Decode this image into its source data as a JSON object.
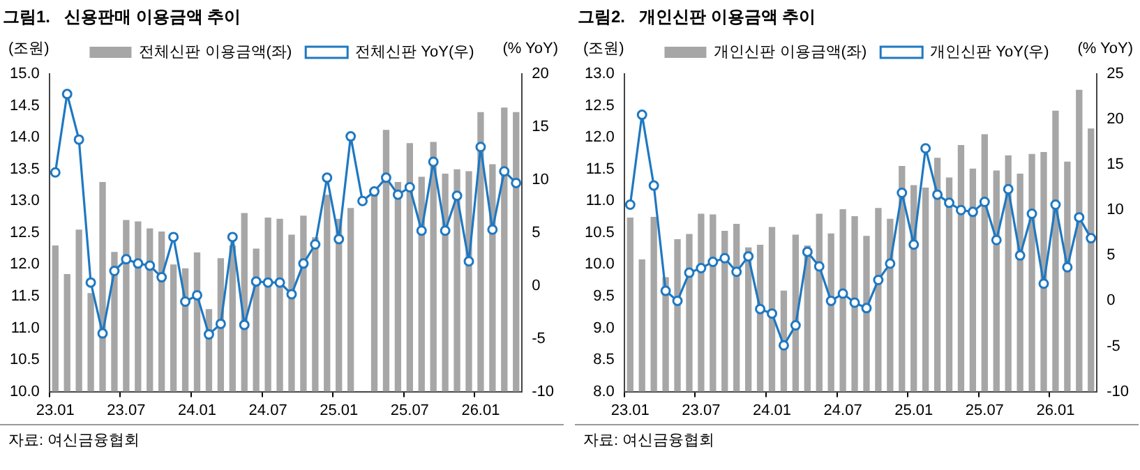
{
  "chart_data": [
    {
      "type": "bar",
      "title": "그림1.   신용판매 이용금액 추이",
      "ylabel": "(조원)",
      "y2label": "(% YoY)",
      "categories": [
        "23.01",
        null,
        null,
        null,
        null,
        null,
        "23.07",
        null,
        null,
        null,
        null,
        null,
        "24.01",
        null,
        null,
        null,
        null,
        null,
        "24.07",
        null,
        null,
        null,
        null,
        null,
        "25.01",
        null,
        null,
        null,
        null,
        null,
        "25.07",
        null,
        null,
        null,
        null,
        null,
        "26.01",
        null,
        null,
        null
      ],
      "series": [
        {
          "name": "전체신판 이용금액(좌)",
          "color": "#a6a6a6",
          "values": [
            12.3,
            11.85,
            12.55,
            11.55,
            13.3,
            12.2,
            12.7,
            12.68,
            12.57,
            12.52,
            12.0,
            11.94,
            12.19,
            11.3,
            12.1,
            12.3,
            12.81,
            12.25,
            12.74,
            12.72,
            12.47,
            12.77,
            12.43,
            13.1,
            12.72,
            12.89,
            null,
            13.1,
            14.12,
            13.3,
            13.91,
            13.38,
            13.93,
            13.43,
            13.5,
            13.47,
            14.4,
            13.58,
            14.47,
            14.4
          ]
        },
        {
          "name": "전체신판 YoY(우)",
          "type": "line",
          "axis": "y2",
          "color": "#1f78c1",
          "marker": "circle",
          "values": [
            10.7,
            18.1,
            13.8,
            0.3,
            -4.5,
            1.4,
            2.5,
            2.1,
            1.9,
            0.8,
            4.6,
            -1.5,
            -0.9,
            -4.6,
            -3.6,
            4.6,
            -3.7,
            0.4,
            0.3,
            0.3,
            -0.8,
            2.1,
            3.9,
            10.2,
            4.4,
            14.1,
            8.0,
            8.9,
            10.2,
            8.6,
            9.3,
            5.2,
            11.7,
            5.2,
            8.5,
            2.3,
            13.1,
            5.3,
            10.8,
            9.7
          ]
        }
      ],
      "ylim": [
        10,
        15
      ],
      "yticks": [
        {
          "value": 10,
          "label": "10.0"
        },
        {
          "value": 10.5,
          "label": "10.5"
        },
        {
          "value": 11,
          "label": "11.0"
        },
        {
          "value": 11.5,
          "label": "11.5"
        },
        {
          "value": 12,
          "label": "12.0"
        },
        {
          "value": 12.5,
          "label": "12.5"
        },
        {
          "value": 13,
          "label": "13.0"
        },
        {
          "value": 13.5,
          "label": "13.5"
        },
        {
          "value": 14,
          "label": "14.0"
        },
        {
          "value": 14.5,
          "label": "14.5"
        },
        {
          "value": 15,
          "label": "15.0"
        }
      ],
      "y2lim": [
        -10,
        20
      ],
      "y2ticks": [
        -10,
        -5,
        0,
        5,
        10,
        15,
        20
      ],
      "grid": false,
      "legend": "top",
      "annotations": [
        "자료: 여신금융협회"
      ]
    },
    {
      "type": "bar",
      "title": "그림2.   개인신판 이용금액 추이",
      "ylabel": "(조원)",
      "y2label": "(% YoY)",
      "categories": [
        "23.01",
        null,
        null,
        null,
        null,
        null,
        "23.07",
        null,
        null,
        null,
        null,
        null,
        "24.01",
        null,
        null,
        null,
        null,
        null,
        "24.07",
        null,
        null,
        null,
        null,
        null,
        "25.01",
        null,
        null,
        null,
        null,
        null,
        "25.07",
        null,
        null,
        null,
        null,
        null,
        "26.01",
        null,
        null,
        null
      ],
      "series": [
        {
          "name": "개인신판 이용금액(좌)",
          "color": "#a6a6a6",
          "values": [
            10.74,
            10.08,
            10.75,
            9.8,
            10.4,
            10.48,
            10.8,
            10.79,
            10.53,
            10.64,
            10.27,
            10.31,
            10.59,
            9.59,
            10.47,
            10.3,
            10.8,
            10.49,
            10.87,
            10.76,
            10.45,
            10.89,
            10.72,
            11.55,
            11.25,
            11.21,
            11.68,
            11.37,
            11.88,
            11.51,
            12.05,
            11.48,
            11.72,
            11.43,
            11.74,
            11.77,
            12.42,
            11.62,
            12.75,
            12.14
          ]
        },
        {
          "name": "개인신판 YoY(우)",
          "type": "line",
          "axis": "y2",
          "color": "#1f78c1",
          "marker": "circle",
          "values": [
            10.6,
            20.5,
            12.7,
            1.1,
            0,
            3.1,
            3.6,
            4.3,
            4.7,
            3.2,
            4.9,
            -0.9,
            -1.4,
            -4.9,
            -2.7,
            5.4,
            3.8,
            0,
            0.8,
            -0.2,
            -0.8,
            2.3,
            4.1,
            11.9,
            6.2,
            16.8,
            11.7,
            10.8,
            10.0,
            9.8,
            10.9,
            6.7,
            12.3,
            5.0,
            9.6,
            1.9,
            10.6,
            3.7,
            9.2,
            6.9
          ]
        }
      ],
      "ylim": [
        8,
        13
      ],
      "yticks": [
        {
          "value": 8,
          "label": "8.0"
        },
        {
          "value": 8.5,
          "label": "8.5"
        },
        {
          "value": 9,
          "label": "9.0"
        },
        {
          "value": 9.5,
          "label": "9.5"
        },
        {
          "value": 10,
          "label": "10.0"
        },
        {
          "value": 10.5,
          "label": "10.5"
        },
        {
          "value": 11,
          "label": "11.0"
        },
        {
          "value": 11.5,
          "label": "11.5"
        },
        {
          "value": 12,
          "label": "12.0"
        },
        {
          "value": 12.5,
          "label": "12.5"
        },
        {
          "value": 13,
          "label": "13.0"
        }
      ],
      "y2lim": [
        -10,
        25
      ],
      "y2ticks": [
        -10,
        -5,
        0,
        5,
        10,
        15,
        20,
        25
      ],
      "grid": false,
      "legend": "top",
      "annotations": [
        "자료: 여신금융협회"
      ]
    }
  ]
}
